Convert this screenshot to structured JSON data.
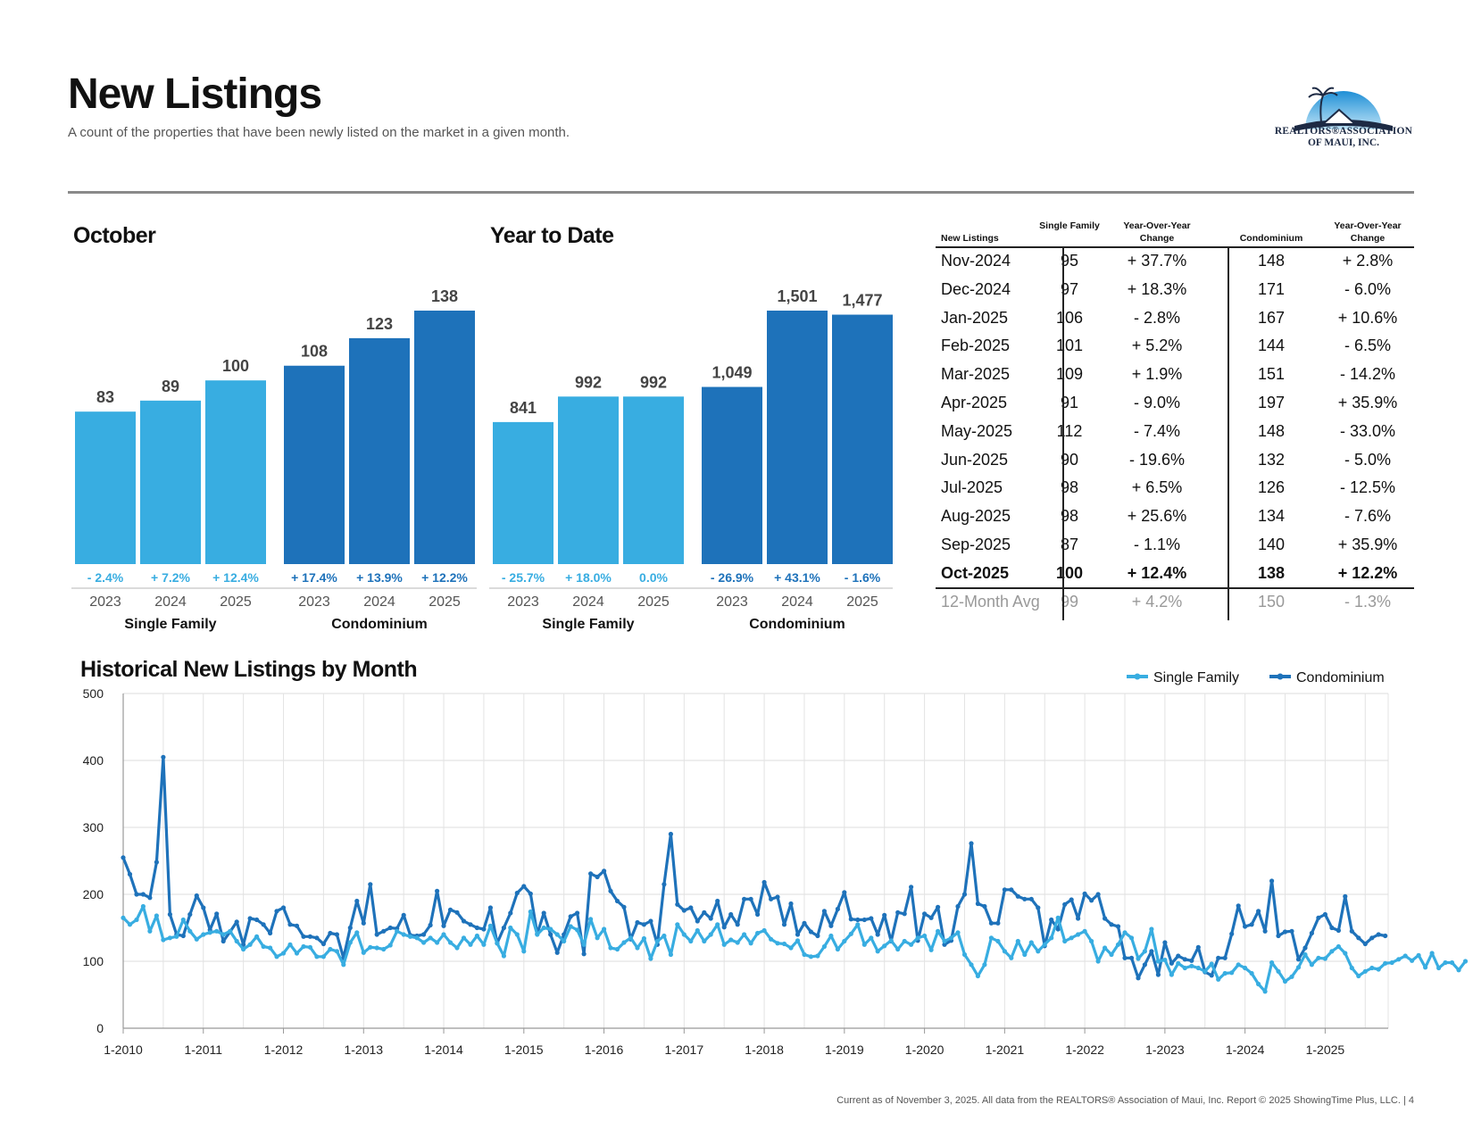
{
  "header": {
    "title": "New Listings",
    "subtitle": "A count of the properties that have been newly listed on the market in a given month.",
    "logo_line1": "REALTORS®ASSOCIATION",
    "logo_line2": "OF MAUI, INC."
  },
  "colors": {
    "single_family": "#38ADE1",
    "condominium": "#1E72BA"
  },
  "chart_data": [
    {
      "type": "bar",
      "title": "October",
      "groups": [
        {
          "name": "Single Family",
          "categories": [
            "2023",
            "2024",
            "2025"
          ],
          "values": [
            83,
            89,
            100
          ],
          "value_labels": [
            "83",
            "89",
            "100"
          ],
          "changes": [
            "- 2.4%",
            "+ 7.2%",
            "+ 12.4%"
          ]
        },
        {
          "name": "Condominium",
          "categories": [
            "2023",
            "2024",
            "2025"
          ],
          "values": [
            108,
            123,
            138
          ],
          "value_labels": [
            "108",
            "123",
            "138"
          ],
          "changes": [
            "+ 17.4%",
            "+ 13.9%",
            "+ 12.2%"
          ]
        }
      ]
    },
    {
      "type": "bar",
      "title": "Year to Date",
      "groups": [
        {
          "name": "Single Family",
          "categories": [
            "2023",
            "2024",
            "2025"
          ],
          "values": [
            841,
            992,
            992
          ],
          "value_labels": [
            "841",
            "992",
            "992"
          ],
          "changes": [
            "- 25.7%",
            "+ 18.0%",
            "0.0%"
          ]
        },
        {
          "name": "Condominium",
          "categories": [
            "2023",
            "2024",
            "2025"
          ],
          "values": [
            1049,
            1501,
            1477
          ],
          "value_labels": [
            "1,049",
            "1,501",
            "1,477"
          ],
          "changes": [
            "- 26.9%",
            "+ 43.1%",
            "- 1.6%"
          ]
        }
      ]
    },
    {
      "type": "table",
      "headers": [
        "New Listings",
        "Single Family",
        "Year-Over-Year Change",
        "Condominium",
        "Year-Over-Year Change"
      ],
      "rows": [
        [
          "Nov-2024",
          "95",
          "+ 37.7%",
          "148",
          "+ 2.8%"
        ],
        [
          "Dec-2024",
          "97",
          "+ 18.3%",
          "171",
          "- 6.0%"
        ],
        [
          "Jan-2025",
          "106",
          "- 2.8%",
          "167",
          "+ 10.6%"
        ],
        [
          "Feb-2025",
          "101",
          "+ 5.2%",
          "144",
          "- 6.5%"
        ],
        [
          "Mar-2025",
          "109",
          "+ 1.9%",
          "151",
          "- 14.2%"
        ],
        [
          "Apr-2025",
          "91",
          "- 9.0%",
          "197",
          "+ 35.9%"
        ],
        [
          "May-2025",
          "112",
          "- 7.4%",
          "148",
          "- 33.0%"
        ],
        [
          "Jun-2025",
          "90",
          "- 19.6%",
          "132",
          "- 5.0%"
        ],
        [
          "Jul-2025",
          "98",
          "+ 6.5%",
          "126",
          "- 12.5%"
        ],
        [
          "Aug-2025",
          "98",
          "+ 25.6%",
          "134",
          "- 7.6%"
        ],
        [
          "Sep-2025",
          "87",
          "- 1.1%",
          "140",
          "+ 35.9%"
        ],
        [
          "Oct-2025",
          "100",
          "+ 12.4%",
          "138",
          "+ 12.2%"
        ]
      ],
      "average_row": [
        "12-Month Avg",
        "99",
        "+ 4.2%",
        "150",
        "- 1.3%"
      ]
    },
    {
      "type": "line",
      "title": "Historical New Listings by Month",
      "x_start": "2010-01",
      "x_ticks": [
        "1-2010",
        "1-2011",
        "1-2012",
        "1-2013",
        "1-2014",
        "1-2015",
        "1-2016",
        "1-2017",
        "1-2018",
        "1-2019",
        "1-2020",
        "1-2021",
        "1-2022",
        "1-2023",
        "1-2024",
        "1-2025"
      ],
      "y_ticks": [
        "0",
        "100",
        "200",
        "300",
        "400",
        "500"
      ],
      "ylim": [
        0,
        500
      ],
      "grid": true,
      "legend": "top-right",
      "series": [
        {
          "name": "Single Family",
          "values": [
            165,
            155,
            162,
            182,
            145,
            168,
            132,
            135,
            137,
            162,
            145,
            133,
            140,
            143,
            145,
            140,
            145,
            130,
            118,
            125,
            137,
            122,
            120,
            107,
            112,
            125,
            112,
            122,
            121,
            107,
            107,
            118,
            115,
            95,
            128,
            143,
            113,
            121,
            120,
            118,
            124,
            145,
            140,
            137,
            135,
            128,
            135,
            128,
            140,
            128,
            120,
            135,
            125,
            138,
            125,
            153,
            127,
            108,
            150,
            140,
            115,
            174,
            140,
            150,
            148,
            140,
            130,
            152,
            147,
            125,
            163,
            135,
            148,
            120,
            118,
            128,
            135,
            120,
            134,
            104,
            130,
            138,
            110,
            155,
            140,
            130,
            146,
            130,
            140,
            155,
            125,
            132,
            128,
            140,
            127,
            142,
            146,
            133,
            127,
            126,
            120,
            131,
            110,
            107,
            108,
            122,
            138,
            118,
            130,
            141,
            155,
            125,
            135,
            115,
            123,
            131,
            118,
            130,
            125,
            135,
            138,
            117,
            145,
            130,
            135,
            143,
            110,
            95,
            78,
            95,
            135,
            130,
            115,
            105,
            130,
            110,
            128,
            115,
            125,
            135,
            165,
            130,
            135,
            140,
            145,
            130,
            100,
            120,
            110,
            125,
            143,
            135,
            104,
            115,
            148,
            100,
            102,
            80,
            97,
            90,
            93,
            90,
            85,
            96,
            73,
            82,
            83,
            95,
            90,
            82,
            66,
            55,
            98,
            85,
            70,
            77,
            91,
            110,
            95,
            105,
            104,
            115,
            122,
            112,
            90,
            78,
            85,
            90,
            88,
            97,
            98,
            103,
            108,
            101,
            109,
            91,
            112,
            90,
            98,
            98,
            87,
            100
          ]
        },
        {
          "name": "Condominium",
          "values": [
            255,
            230,
            200,
            200,
            195,
            248,
            405,
            170,
            140,
            138,
            170,
            198,
            180,
            147,
            171,
            130,
            144,
            159,
            125,
            164,
            162,
            155,
            142,
            175,
            180,
            155,
            153,
            137,
            137,
            135,
            126,
            142,
            140,
            105,
            150,
            190,
            157,
            215,
            140,
            145,
            150,
            149,
            169,
            139,
            138,
            140,
            154,
            205,
            153,
            177,
            173,
            160,
            155,
            150,
            148,
            180,
            127,
            150,
            172,
            202,
            212,
            201,
            141,
            172,
            140,
            113,
            140,
            167,
            172,
            111,
            231,
            226,
            235,
            205,
            190,
            181,
            133,
            158,
            155,
            160,
            125,
            215,
            290,
            185,
            176,
            180,
            160,
            173,
            164,
            190,
            151,
            170,
            155,
            193,
            193,
            170,
            218,
            193,
            196,
            155,
            186,
            140,
            157,
            144,
            138,
            175,
            153,
            178,
            203,
            163,
            162,
            162,
            164,
            140,
            169,
            130,
            173,
            171,
            211,
            131,
            171,
            165,
            181,
            125,
            131,
            182,
            200,
            276,
            186,
            182,
            157,
            157,
            207,
            207,
            197,
            193,
            193,
            180,
            123,
            162,
            148,
            185,
            192,
            164,
            201,
            191,
            200,
            164,
            155,
            152,
            105,
            105,
            75,
            95,
            115,
            80,
            128,
            97,
            108,
            103,
            101,
            121,
            84,
            79,
            105,
            105,
            141,
            183,
            152,
            155,
            175,
            145,
            220,
            138,
            144,
            145,
            103,
            120,
            142,
            165,
            170,
            150,
            146,
            197,
            145,
            135,
            126,
            135,
            140,
            138
          ]
        }
      ]
    }
  ],
  "footer": "Current as of November 3, 2025. All data from the REALTORS® Association of Maui, Inc. Report © 2025 ShowingTime Plus, LLC.  |  4"
}
